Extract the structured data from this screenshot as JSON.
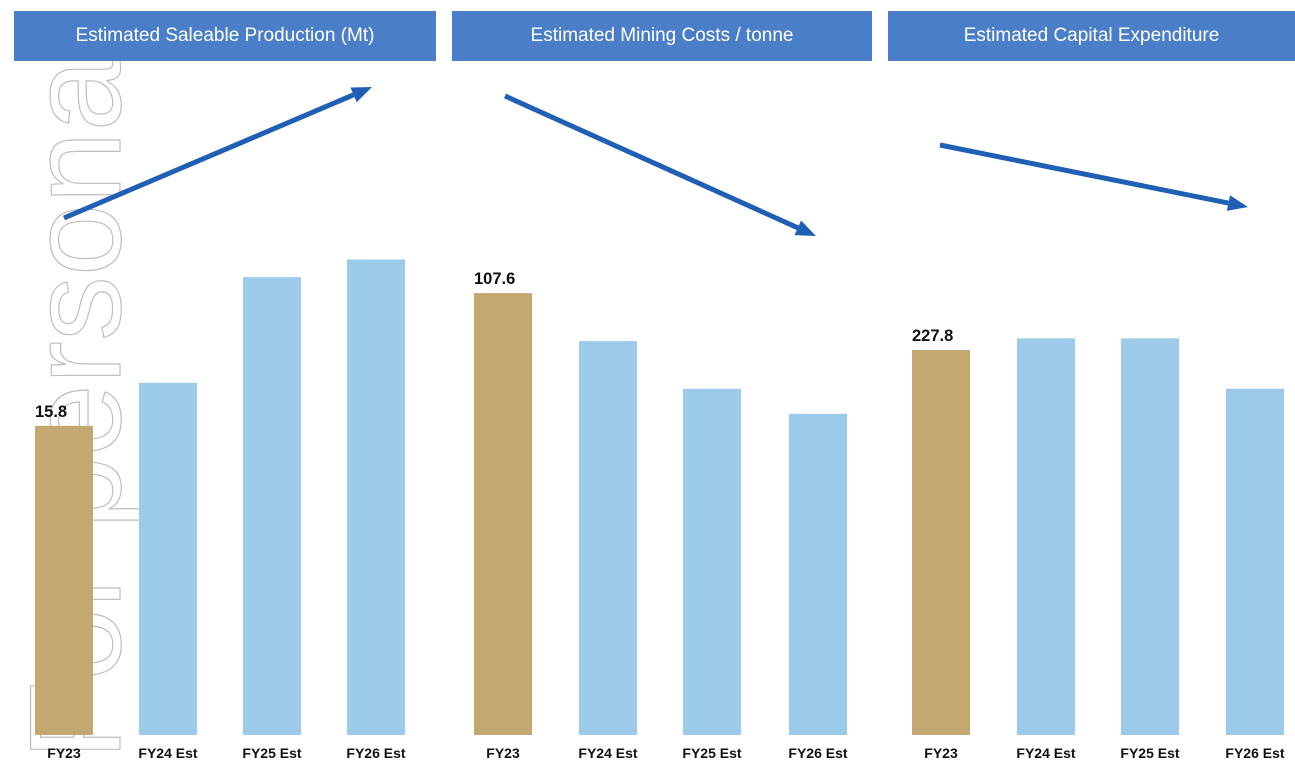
{
  "colors": {
    "header_bg": "#4a7ec9",
    "actual_bar": "#c4a872",
    "estimate_bar": "#9ccaea",
    "trend_arrow": "#1f5fb5",
    "watermark": "#bdbdbd"
  },
  "watermark_text": "For personal use only",
  "chart_data": [
    {
      "type": "bar",
      "title": "Estimated Saleable Production (Mt)",
      "categories": [
        "FY23",
        "FY24 Est",
        "FY25 Est",
        "FY26 Est"
      ],
      "values": [
        15.8,
        18.0,
        23.4,
        24.3
      ],
      "value_labels": [
        "15.8",
        "",
        "",
        ""
      ],
      "ylim": [
        0,
        30
      ],
      "trend": "up",
      "grid": false
    },
    {
      "type": "bar",
      "title": "Estimated Mining Costs / tonne",
      "categories": [
        "FY23",
        "FY24 Est",
        "FY25 Est",
        "FY26 Est"
      ],
      "values": [
        107.6,
        95.9,
        84.3,
        78.2
      ],
      "value_labels": [
        "107.6",
        "",
        "",
        ""
      ],
      "ylim": [
        0,
        140
      ],
      "trend": "down",
      "grid": false
    },
    {
      "type": "bar",
      "title": "Estimated Capital Expenditure",
      "categories": [
        "FY23",
        "FY24 Est",
        "FY25 Est",
        "FY26 Est"
      ],
      "values": [
        227.8,
        234.7,
        234.7,
        204.9
      ],
      "value_labels": [
        "227.8",
        "",
        "",
        ""
      ],
      "ylim": [
        0,
        300
      ],
      "trend": "down",
      "grid": false
    }
  ]
}
